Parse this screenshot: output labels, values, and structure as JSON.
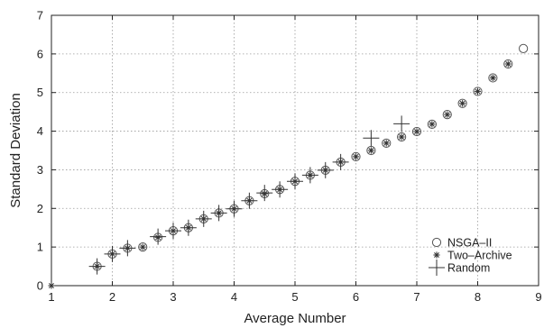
{
  "chart_data": {
    "type": "scatter",
    "xlabel": "Average Number",
    "ylabel": "Standard Deviation",
    "xlim": [
      1,
      9
    ],
    "ylim": [
      0,
      7
    ],
    "xticks": [
      "1",
      "2",
      "3",
      "4",
      "5",
      "6",
      "7",
      "8",
      "9"
    ],
    "yticks": [
      "0",
      "1",
      "2",
      "3",
      "4",
      "5",
      "6",
      "7"
    ],
    "grid": true,
    "legend_position": "bottom-right",
    "series": [
      {
        "name": "NSGA–II",
        "marker": "circle",
        "points": [
          [
            1.75,
            0.5
          ],
          [
            2.0,
            0.82
          ],
          [
            2.25,
            0.97
          ],
          [
            2.5,
            1.0
          ],
          [
            2.75,
            1.25
          ],
          [
            3.0,
            1.42
          ],
          [
            3.25,
            1.5
          ],
          [
            3.5,
            1.73
          ],
          [
            3.75,
            1.88
          ],
          [
            4.0,
            1.99
          ],
          [
            4.25,
            2.2
          ],
          [
            4.5,
            2.38
          ],
          [
            4.75,
            2.49
          ],
          [
            5.0,
            2.7
          ],
          [
            5.25,
            2.86
          ],
          [
            5.5,
            2.99
          ],
          [
            5.75,
            3.2
          ],
          [
            6.0,
            3.34
          ],
          [
            6.25,
            3.5
          ],
          [
            6.5,
            3.69
          ],
          [
            6.75,
            3.85
          ],
          [
            7.0,
            3.99
          ],
          [
            7.25,
            4.18
          ],
          [
            7.5,
            4.43
          ],
          [
            7.75,
            4.72
          ],
          [
            8.0,
            5.03
          ],
          [
            8.25,
            5.38
          ],
          [
            8.5,
            5.74
          ],
          [
            8.75,
            6.14
          ]
        ]
      },
      {
        "name": "Two–Archive",
        "marker": "star",
        "points": [
          [
            1.0,
            0.0
          ],
          [
            1.75,
            0.5
          ],
          [
            2.0,
            0.82
          ],
          [
            2.25,
            0.97
          ],
          [
            2.5,
            1.0
          ],
          [
            2.75,
            1.25
          ],
          [
            3.0,
            1.42
          ],
          [
            3.25,
            1.5
          ],
          [
            3.5,
            1.73
          ],
          [
            3.75,
            1.88
          ],
          [
            4.0,
            1.99
          ],
          [
            4.25,
            2.2
          ],
          [
            4.5,
            2.38
          ],
          [
            4.75,
            2.49
          ],
          [
            5.0,
            2.7
          ],
          [
            5.25,
            2.86
          ],
          [
            5.5,
            2.99
          ],
          [
            5.75,
            3.2
          ],
          [
            6.0,
            3.34
          ],
          [
            6.25,
            3.5
          ],
          [
            6.5,
            3.69
          ],
          [
            6.75,
            3.85
          ],
          [
            7.0,
            3.99
          ],
          [
            7.25,
            4.18
          ],
          [
            7.5,
            4.43
          ],
          [
            7.75,
            4.72
          ],
          [
            8.0,
            5.03
          ],
          [
            8.25,
            5.38
          ],
          [
            8.5,
            5.74
          ]
        ]
      },
      {
        "name": "Random",
        "marker": "plus",
        "points": [
          [
            1.75,
            0.5
          ],
          [
            2.0,
            0.82
          ],
          [
            2.25,
            0.97
          ],
          [
            2.75,
            1.27
          ],
          [
            3.0,
            1.42
          ],
          [
            3.25,
            1.5
          ],
          [
            3.5,
            1.73
          ],
          [
            3.75,
            1.88
          ],
          [
            4.0,
            1.99
          ],
          [
            4.25,
            2.2
          ],
          [
            4.5,
            2.4
          ],
          [
            4.75,
            2.49
          ],
          [
            5.0,
            2.7
          ],
          [
            5.25,
            2.86
          ],
          [
            5.5,
            2.99
          ],
          [
            5.75,
            3.2
          ],
          [
            6.25,
            3.82
          ],
          [
            6.75,
            4.19
          ]
        ]
      }
    ]
  }
}
